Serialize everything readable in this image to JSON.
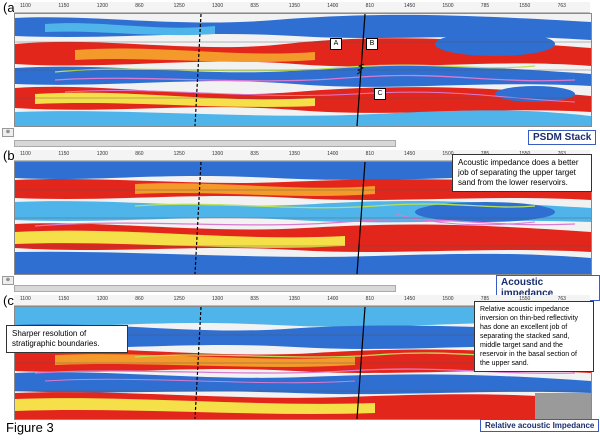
{
  "figure_label": "Figure 3",
  "panels": [
    {
      "id": "a",
      "letter": "(a)",
      "title": "PSDM Stack",
      "markers": [
        "A",
        "B",
        "C"
      ],
      "ticks": [
        "1100",
        "1150",
        "1200",
        "860",
        "1250",
        "1300",
        "835",
        "1350",
        "1400",
        "810",
        "1450",
        "1500",
        "785",
        "1550",
        "763"
      ]
    },
    {
      "id": "b",
      "letter": "(b)",
      "title": "Acoustic impedance",
      "callout": "Acoustic impedance does a better job of separating the upper target sand from the lower reservoirs.",
      "ticks": [
        "1100",
        "1150",
        "1200",
        "860",
        "1250",
        "1300",
        "835",
        "1350",
        "1400",
        "810",
        "1450",
        "1500",
        "785",
        "1550",
        "763"
      ]
    },
    {
      "id": "c",
      "letter": "(c)",
      "title": "Relative acoustic Impedance",
      "callout_left": "Sharper resolution of stratigraphic boundaries.",
      "callout_right": "Relative acoustic impedance inversion on thin-bed reflectivity has done an excellent job of separating the stacked sand, middle target sand and the reservoir in the basal section of the upper sand.",
      "ticks": [
        "1100",
        "1150",
        "1200",
        "860",
        "1250",
        "1300",
        "835",
        "1350",
        "1400",
        "810",
        "1450",
        "1500",
        "785",
        "1550",
        "763"
      ]
    }
  ],
  "colors": {
    "red": "#e3261c",
    "orange": "#f39a2b",
    "yellow": "#f5e04a",
    "blue": "#2e6fd1",
    "cyan": "#4fb4ea",
    "white": "#f2f2f2",
    "horizon_green": "#b8e05a",
    "horizon_magenta": "#d97bd0",
    "title_text": "#1a2e6e"
  }
}
